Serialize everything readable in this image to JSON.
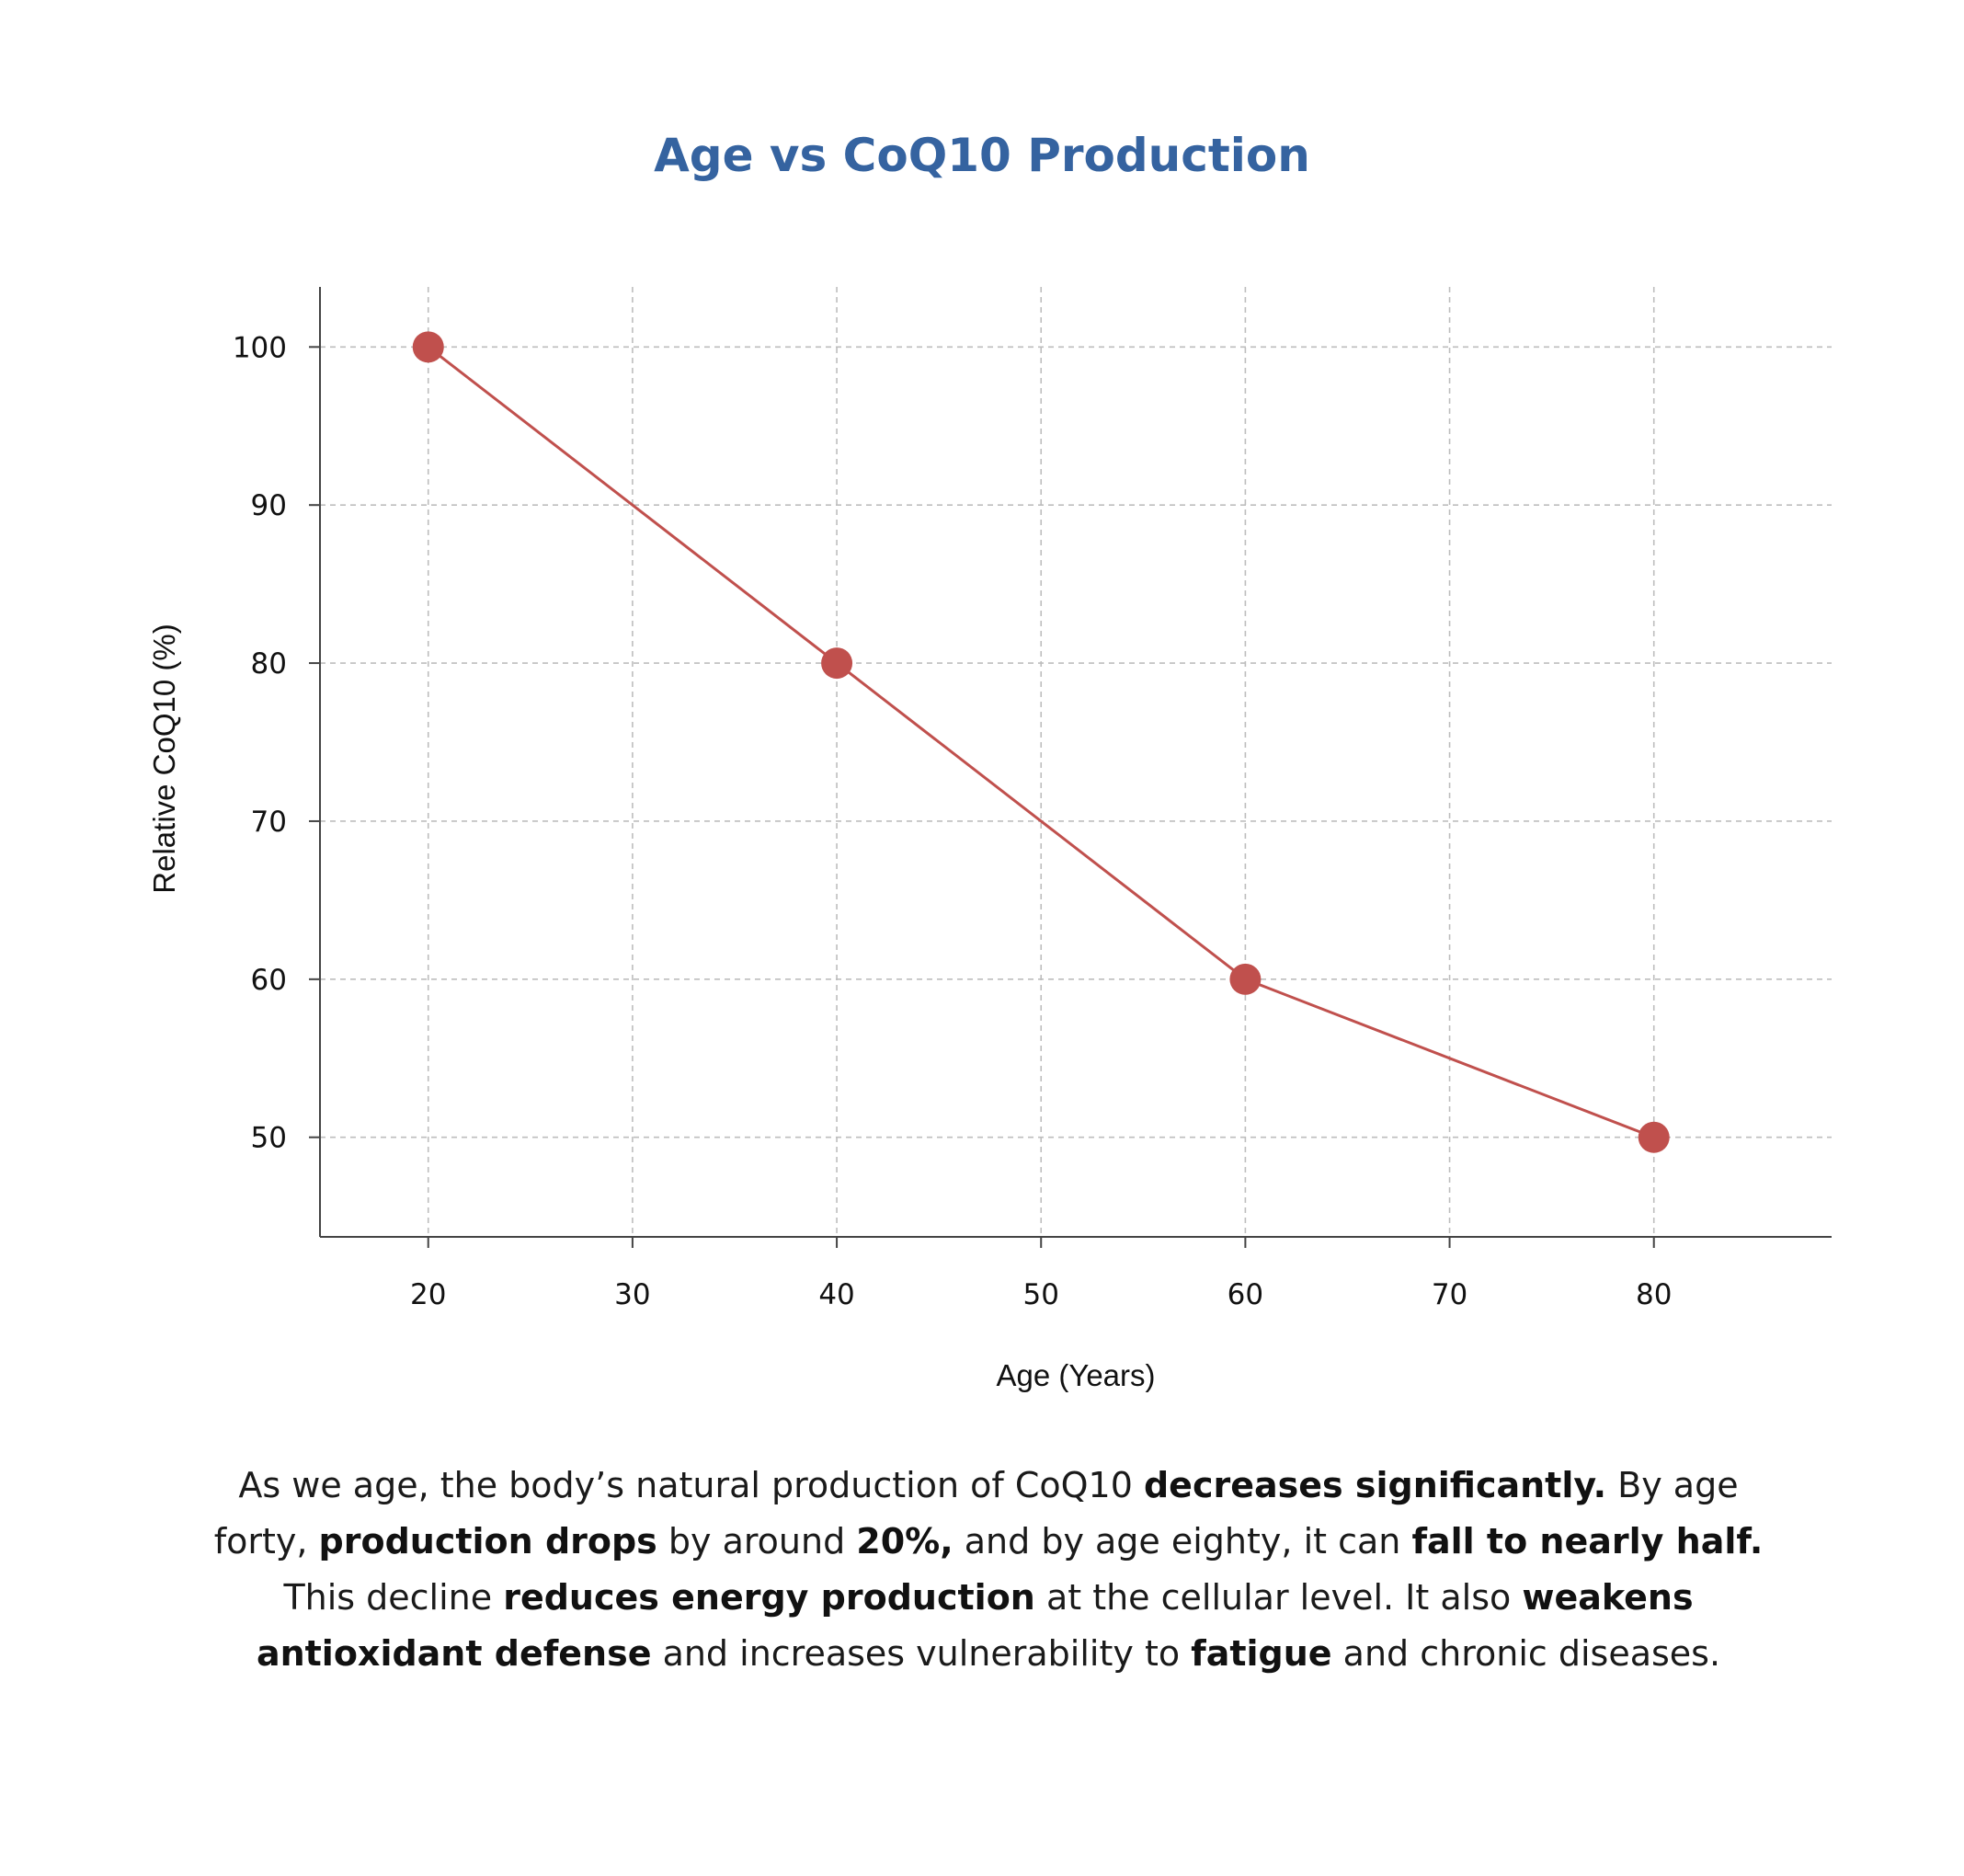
{
  "colors": {
    "title": "#3563a0",
    "series": "#c0504d",
    "grid": "#bdbdbd",
    "axis": "#444444",
    "text": "#1a1a1a"
  },
  "chart_data": {
    "type": "line",
    "title": "Age vs CoQ10 Production",
    "xlabel": "Age (Years)",
    "ylabel": "Relative CoQ10 (%)",
    "x_ticks": [
      20,
      30,
      40,
      50,
      60,
      70,
      80
    ],
    "y_ticks": [
      50,
      60,
      70,
      80,
      90,
      100
    ],
    "xlim": [
      14.7,
      88.7
    ],
    "ylim": [
      43.7,
      103.8
    ],
    "grid": true,
    "grid_style": "dashed",
    "legend": false,
    "series": [
      {
        "x": [
          20,
          40,
          60,
          80
        ],
        "y": [
          100,
          80,
          60,
          50
        ],
        "marker": "circle",
        "color": "#c0504d"
      }
    ]
  },
  "caption": [
    [
      {
        "text": "As we age, the body’s natural production of CoQ10 ",
        "bold": false
      },
      {
        "text": "decreases significantly.",
        "bold": true
      },
      {
        "text": " By age forty, ",
        "bold": false
      },
      {
        "text": "production drops",
        "bold": true
      },
      {
        "text": " by around ",
        "bold": false
      },
      {
        "text": "20%,",
        "bold": true
      },
      {
        "text": " and by age eighty, it can ",
        "bold": false
      },
      {
        "text": "fall to nearly half.",
        "bold": true
      },
      {
        "text": " This decline ",
        "bold": false
      },
      {
        "text": "reduces energy production",
        "bold": true
      },
      {
        "text": " at the cellular level. It also ",
        "bold": false
      },
      {
        "text": "weakens antioxidant defense",
        "bold": true
      },
      {
        "text": " and increases vulnerability to ",
        "bold": false
      },
      {
        "text": "fatigue",
        "bold": true
      },
      {
        "text": " and chronic diseases.",
        "bold": false
      }
    ]
  ]
}
